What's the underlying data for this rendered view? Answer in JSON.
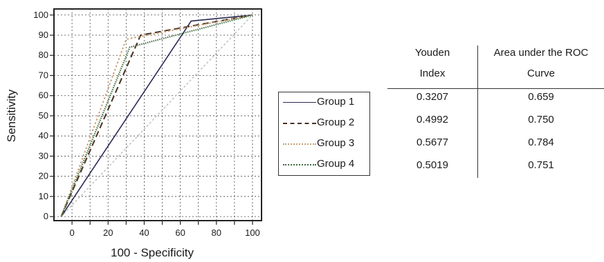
{
  "chart_data": {
    "type": "line",
    "xlabel": "100  - Specificity",
    "ylabel": "Sensitivity",
    "xlim": [
      -10,
      105
    ],
    "ylim": [
      -2,
      103
    ],
    "xticks": [
      0,
      20,
      40,
      60,
      80,
      100
    ],
    "yticks": [
      0,
      10,
      20,
      30,
      40,
      50,
      60,
      70,
      80,
      90,
      100
    ],
    "grid": true,
    "legend_placement": "right",
    "series": [
      {
        "name": "Group 1",
        "color": "#2a2a55",
        "dash": "solid",
        "points": [
          [
            -6,
            0
          ],
          [
            66,
            97
          ],
          [
            100,
            100
          ]
        ]
      },
      {
        "name": "Group 2",
        "color": "#4a3020",
        "dash": "long-dash",
        "points": [
          [
            -6,
            0
          ],
          [
            38,
            90
          ],
          [
            100,
            100
          ]
        ]
      },
      {
        "name": "Group 3",
        "color": "#c8a070",
        "dash": "dotted",
        "points": [
          [
            -6,
            0
          ],
          [
            30,
            88
          ],
          [
            100,
            100
          ]
        ]
      },
      {
        "name": "Group 4",
        "color": "#3c6a3c",
        "dash": "dense-dotted",
        "points": [
          [
            -6,
            0
          ],
          [
            32,
            84
          ],
          [
            100,
            100
          ]
        ]
      }
    ],
    "reference_line": {
      "color": "#bbbbbb",
      "points": [
        [
          -6,
          0
        ],
        [
          100,
          100
        ]
      ]
    }
  },
  "stats_table": {
    "headers": [
      [
        "Youden",
        "Index"
      ],
      [
        "Area under the ROC",
        "Curve"
      ]
    ],
    "rows": [
      [
        "0.3207",
        "0.659"
      ],
      [
        "0.4992",
        "0.750"
      ],
      [
        "0.5677",
        "0.784"
      ],
      [
        "0.5019",
        "0.751"
      ]
    ]
  }
}
